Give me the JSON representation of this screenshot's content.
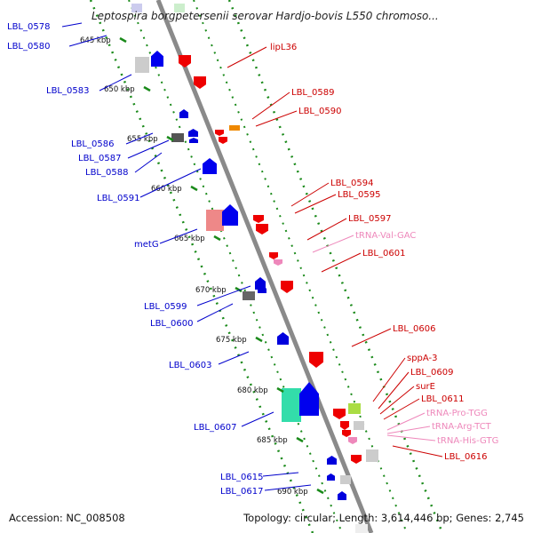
{
  "title": "Leptospira borgpetersenii serovar Hardjo-bovis L550 chromoso...",
  "footer": {
    "accession": "Accession: NC_008508",
    "summary": "Topology: circular; Length: 3,614,446 bp; Genes: 2,745"
  },
  "colors": {
    "left_labels": "#0000cc",
    "right_labels": "#cc0000",
    "trna_labels": "#ee88bb",
    "backbone": "#888888",
    "ticks": "#1a8a1a"
  },
  "ticks": [
    {
      "label": "645 kbp"
    },
    {
      "label": "650 kbp"
    },
    {
      "label": "655 kbp"
    },
    {
      "label": "660 kbp"
    },
    {
      "label": "665 kbp"
    },
    {
      "label": "670 kbp"
    },
    {
      "label": "675 kbp"
    },
    {
      "label": "680 kbp"
    },
    {
      "label": "685 kbp"
    },
    {
      "label": "690 kbp"
    }
  ],
  "left_labels": [
    {
      "text": "LBL_0578"
    },
    {
      "text": "LBL_0580"
    },
    {
      "text": "LBL_0583"
    },
    {
      "text": "LBL_0586"
    },
    {
      "text": "LBL_0587"
    },
    {
      "text": "LBL_0588"
    },
    {
      "text": "LBL_0591"
    },
    {
      "text": "metG"
    },
    {
      "text": "LBL_0599"
    },
    {
      "text": "LBL_0600"
    },
    {
      "text": "LBL_0603"
    },
    {
      "text": "LBL_0607"
    },
    {
      "text": "LBL_0615"
    },
    {
      "text": "LBL_0617"
    }
  ],
  "right_labels": [
    {
      "text": "lipL36",
      "kind": "gene"
    },
    {
      "text": "LBL_0589",
      "kind": "gene"
    },
    {
      "text": "LBL_0590",
      "kind": "gene"
    },
    {
      "text": "LBL_0594",
      "kind": "gene"
    },
    {
      "text": "LBL_0595",
      "kind": "gene"
    },
    {
      "text": "LBL_0597",
      "kind": "gene"
    },
    {
      "text": "tRNA-Val-GAC",
      "kind": "trna"
    },
    {
      "text": "LBL_0601",
      "kind": "gene"
    },
    {
      "text": "LBL_0606",
      "kind": "gene"
    },
    {
      "text": "sppA-3",
      "kind": "gene"
    },
    {
      "text": "LBL_0609",
      "kind": "gene"
    },
    {
      "text": "surE",
      "kind": "gene"
    },
    {
      "text": "LBL_0611",
      "kind": "gene"
    },
    {
      "text": "tRNA-Pro-TGG",
      "kind": "trna"
    },
    {
      "text": "tRNA-Arg-TCT",
      "kind": "trna"
    },
    {
      "text": "tRNA-His-GTG",
      "kind": "trna"
    },
    {
      "text": "LBL_0616",
      "kind": "gene"
    }
  ]
}
